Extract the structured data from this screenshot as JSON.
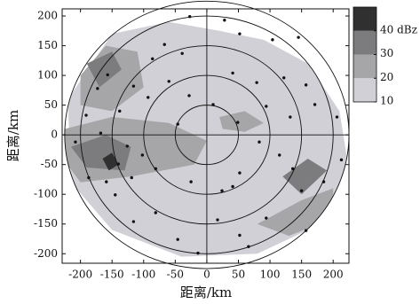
{
  "chart_data": {
    "type": "scatter",
    "xlabel": "距离/km",
    "ylabel": "距离/km",
    "xlim": [
      -229,
      225
    ],
    "ylim": [
      -216,
      212
    ],
    "xticks": [
      -200,
      -150,
      -100,
      -50,
      0,
      50,
      100,
      150,
      200
    ],
    "yticks": [
      -200,
      -150,
      -100,
      -50,
      0,
      50,
      100,
      150,
      200
    ],
    "rings": [
      50,
      100,
      150,
      200,
      225
    ],
    "color": "#111111",
    "x": [
      -27,
      28,
      52,
      104,
      145,
      -67,
      -86,
      -39,
      41,
      79,
      122,
      157,
      -116,
      -157,
      -173,
      -138,
      -93,
      -60,
      -28,
      10,
      94,
      132,
      171,
      206,
      -191,
      -168,
      -126,
      -102,
      -81,
      -119,
      -159,
      -140,
      -145,
      -116,
      -81,
      -46,
      -14,
      17,
      52,
      94,
      150,
      185,
      213,
      115,
      83,
      52,
      24,
      -25,
      49,
      -46,
      -208,
      -187,
      66,
      157,
      41,
      136
    ],
    "values": [
      199,
      193,
      170,
      160,
      164,
      152,
      128,
      137,
      104,
      88,
      96,
      84,
      82,
      101,
      78,
      40,
      63,
      90,
      66,
      51,
      48,
      30,
      51,
      30,
      33,
      3,
      -19,
      -34,
      -57,
      -72,
      -79,
      -49,
      -101,
      -146,
      -131,
      -176,
      -199,
      -143,
      -169,
      -140,
      -94,
      -79,
      -42,
      -34,
      -12,
      -64,
      -94,
      -79,
      21,
      18,
      -12,
      -72,
      -188,
      -161,
      -87,
      -57
    ],
    "colorbar": {
      "clim": [
        10,
        50
      ],
      "ticks": [
        {
          "value": 40,
          "label": "40 dBz"
        },
        30,
        20,
        10
      ],
      "levels": [
        10,
        20,
        30,
        40
      ],
      "colors": [
        "#d0d0d6",
        "#a6a6a8",
        "#7c7c7e",
        "#303030"
      ]
    },
    "echo_regions": [
      {
        "level": 10,
        "points": [
          [
            -220,
            60
          ],
          [
            -150,
            170
          ],
          [
            -60,
            190
          ],
          [
            20,
            175
          ],
          [
            90,
            160
          ],
          [
            160,
            120
          ],
          [
            210,
            40
          ],
          [
            225,
            -60
          ],
          [
            180,
            -150
          ],
          [
            80,
            -200
          ],
          [
            -40,
            -205
          ],
          [
            -150,
            -160
          ],
          [
            -215,
            -80
          ]
        ]
      },
      {
        "level": 20,
        "points": [
          [
            -225,
            10
          ],
          [
            -150,
            30
          ],
          [
            -60,
            20
          ],
          [
            0,
            -10
          ],
          [
            -20,
            -50
          ],
          [
            -120,
            -70
          ],
          [
            -200,
            -80
          ],
          [
            -228,
            -40
          ]
        ]
      },
      {
        "level": 20,
        "points": [
          [
            -200,
            100
          ],
          [
            -160,
            150
          ],
          [
            -110,
            140
          ],
          [
            -100,
            80
          ],
          [
            -150,
            40
          ],
          [
            -200,
            50
          ]
        ]
      },
      {
        "level": 20,
        "points": [
          [
            20,
            30
          ],
          [
            60,
            40
          ],
          [
            90,
            20
          ],
          [
            60,
            5
          ],
          [
            25,
            10
          ]
        ]
      },
      {
        "level": 20,
        "points": [
          [
            80,
            -150
          ],
          [
            150,
            -110
          ],
          [
            200,
            -90
          ],
          [
            200,
            -140
          ],
          [
            130,
            -170
          ]
        ]
      },
      {
        "level": 30,
        "points": [
          [
            -215,
            -20
          ],
          [
            -160,
            0
          ],
          [
            -120,
            -20
          ],
          [
            -130,
            -60
          ],
          [
            -190,
            -55
          ]
        ]
      },
      {
        "level": 30,
        "points": [
          [
            -190,
            120
          ],
          [
            -150,
            140
          ],
          [
            -135,
            110
          ],
          [
            -170,
            80
          ]
        ]
      },
      {
        "level": 30,
        "points": [
          [
            120,
            -70
          ],
          [
            160,
            -40
          ],
          [
            190,
            -60
          ],
          [
            150,
            -100
          ]
        ]
      },
      {
        "level": 40,
        "points": [
          [
            -165,
            -40
          ],
          [
            -150,
            -30
          ],
          [
            -140,
            -50
          ],
          [
            -155,
            -60
          ]
        ]
      }
    ]
  }
}
